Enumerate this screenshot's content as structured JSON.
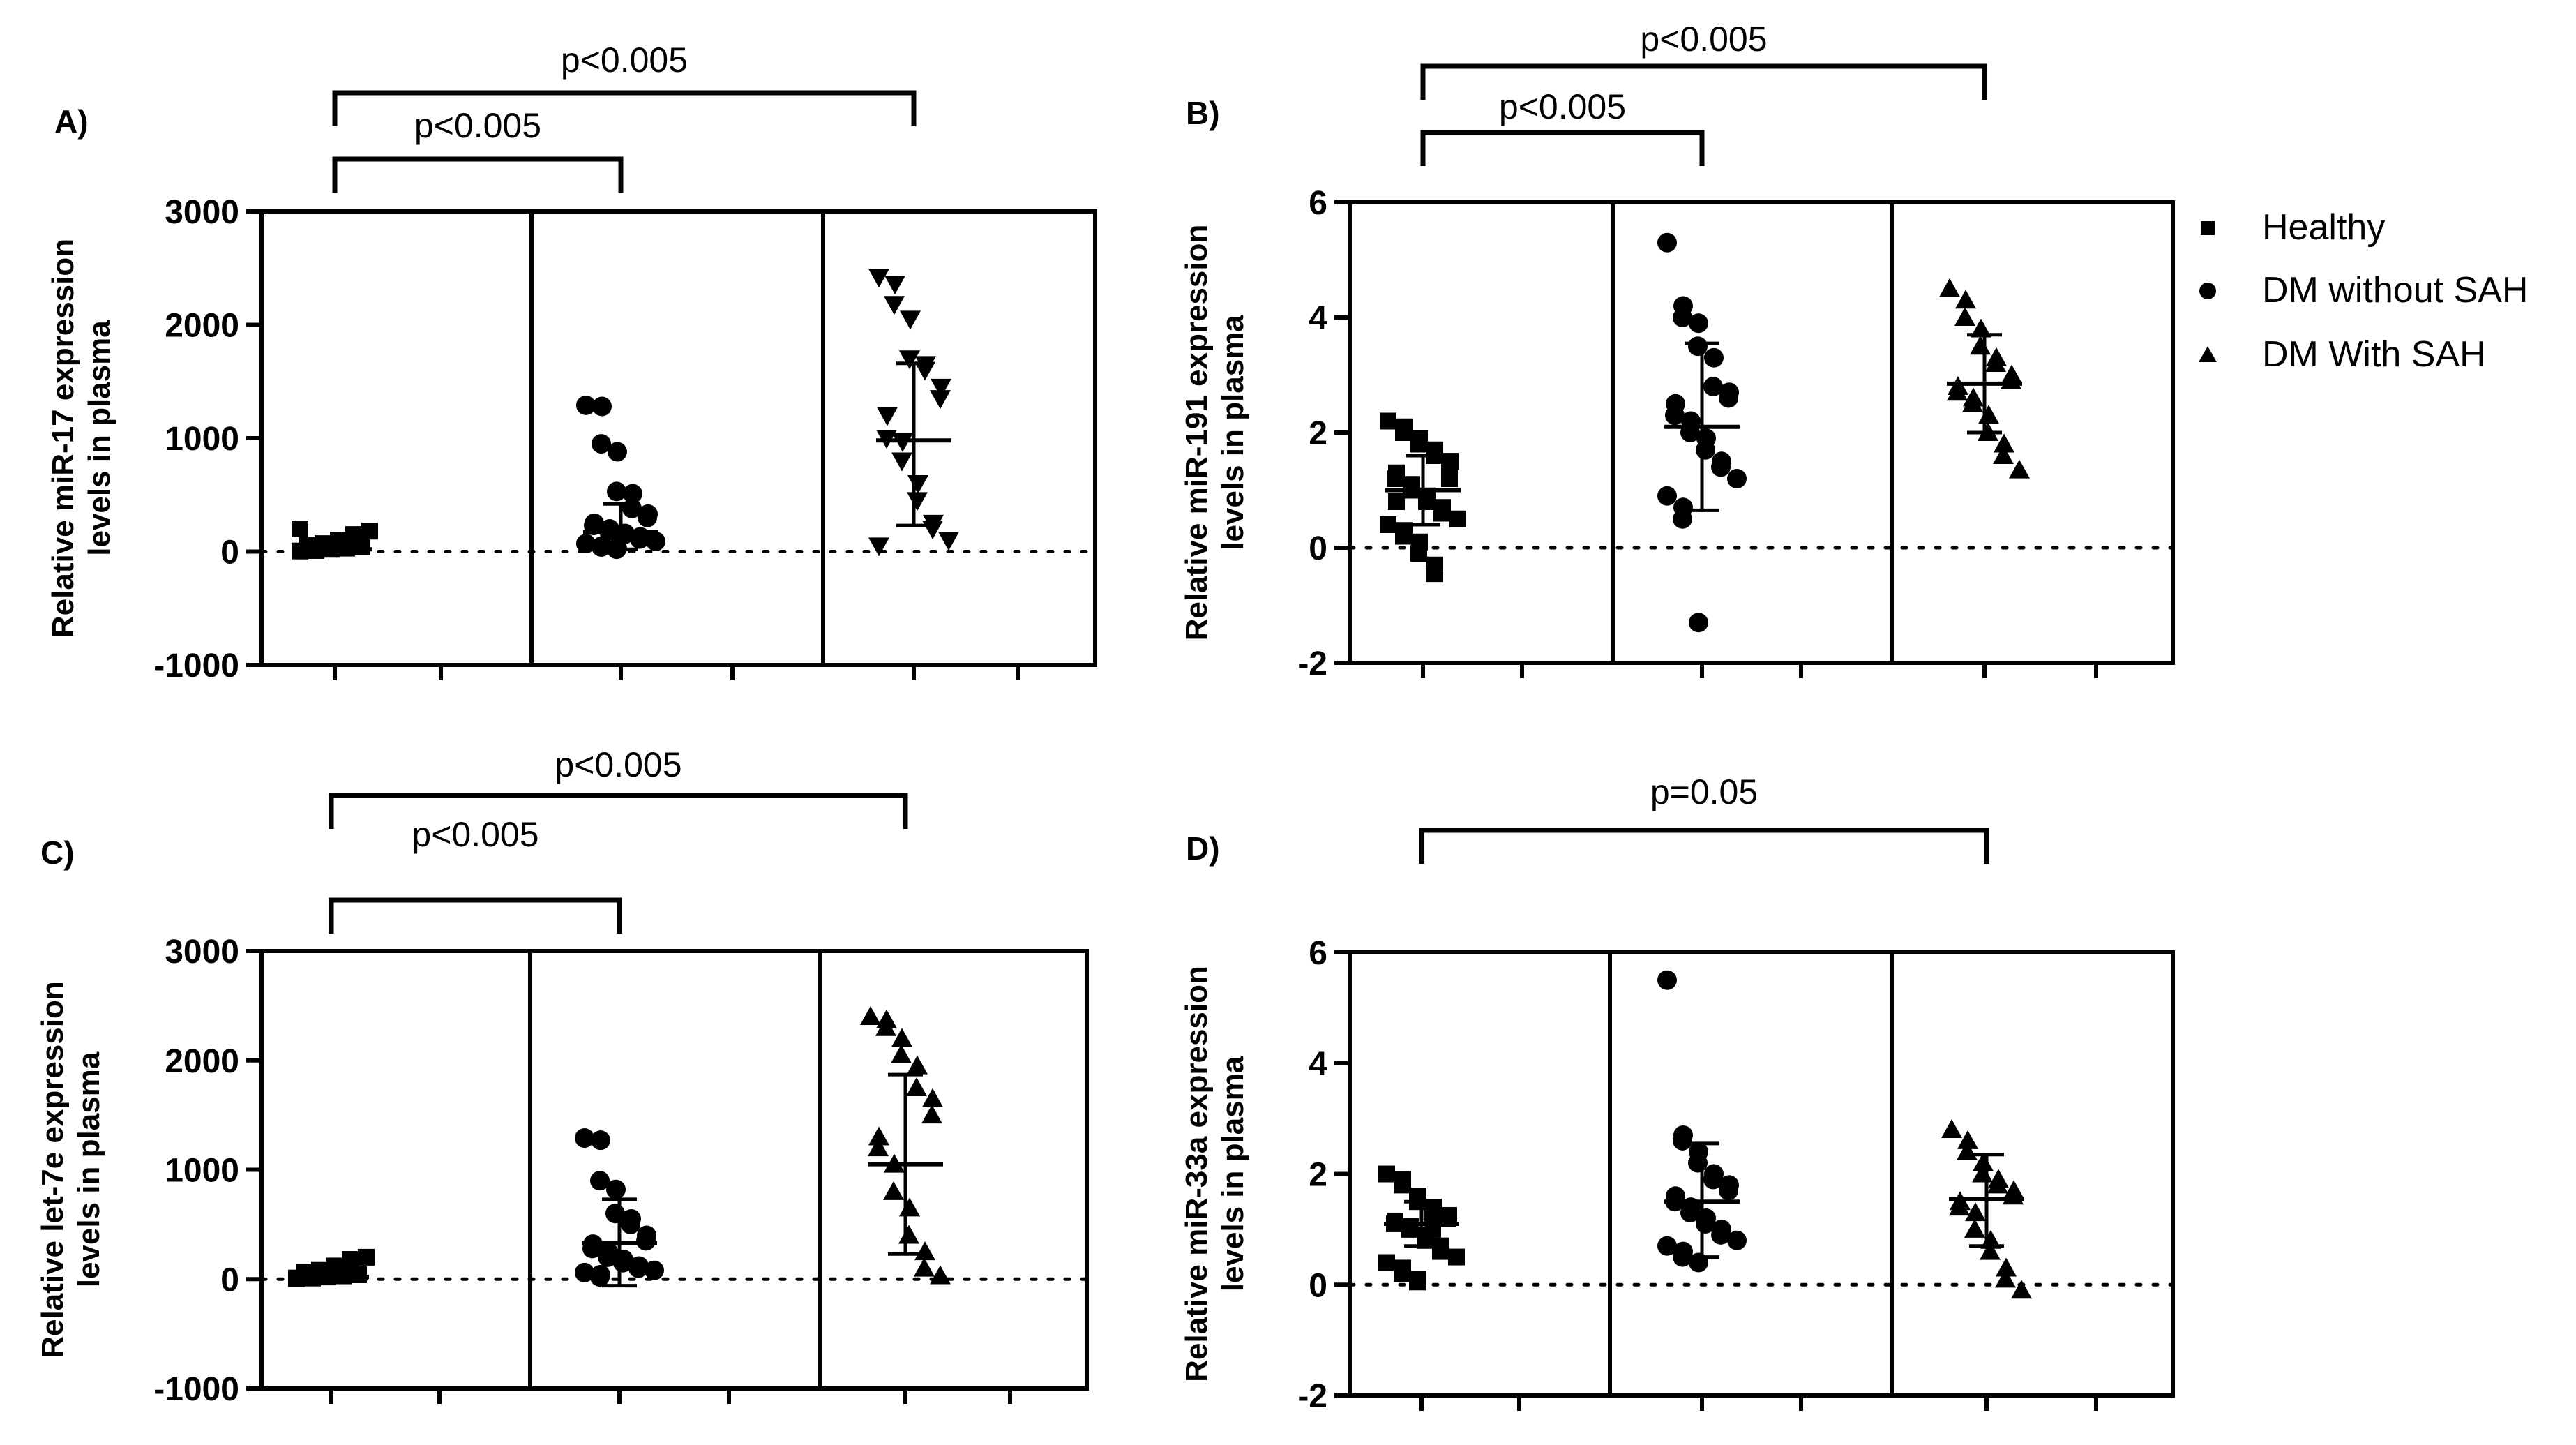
{
  "legend": [
    {
      "label": "Healthy",
      "marker": "square"
    },
    {
      "label": "DM without SAH",
      "marker": "circle"
    },
    {
      "label": "DM With SAH",
      "marker": "triangle"
    }
  ],
  "chart_data": [
    {
      "type": "scatter",
      "panel": "A)",
      "ylabel_line1": "Relative miR-17 expression",
      "ylabel_line2": "levels in plasma",
      "ylim": [
        -1000,
        3000
      ],
      "yticks": [
        -1000,
        0,
        1000,
        2000,
        3000
      ],
      "yticklabels": [
        "-1000",
        "0",
        "1000",
        "2000",
        "3000"
      ],
      "groups": [
        {
          "name": "Healthy",
          "marker": "square",
          "mean": 20,
          "sd_low": -20,
          "sd_high": 60,
          "values": [
            5,
            10,
            15,
            20,
            25,
            30,
            35,
            40,
            45,
            50,
            55,
            60,
            70,
            80,
            100,
            120,
            150,
            180,
            200,
            10,
            20,
            30,
            40,
            50
          ]
        },
        {
          "name": "DM without SAH",
          "marker": "circle",
          "mean": 170,
          "sd_low": 20,
          "sd_high": 420,
          "values": [
            1290,
            1280,
            950,
            880,
            530,
            510,
            380,
            330,
            300,
            250,
            230,
            200,
            180,
            160,
            150,
            130,
            110,
            90,
            70,
            50,
            40,
            30,
            20
          ]
        },
        {
          "name": "DM With SAH",
          "marker": "triangle-down",
          "mean": 980,
          "sd_low": 230,
          "sd_high": 1660,
          "values": [
            2420,
            2360,
            2180,
            2050,
            1700,
            1650,
            1600,
            1450,
            1350,
            1200,
            1000,
            970,
            800,
            600,
            450,
            250,
            200,
            100,
            50
          ]
        }
      ],
      "comparisons": [
        {
          "label": "p<0.005",
          "from": "Healthy",
          "to": "DM without SAH"
        },
        {
          "label": "p<0.005",
          "from": "Healthy",
          "to": "DM With SAH"
        }
      ]
    },
    {
      "type": "scatter",
      "panel": "B)",
      "ylabel_line1": "Relative miR-191 expression",
      "ylabel_line2": "levels in plasma",
      "ylim": [
        -2,
        6
      ],
      "yticks": [
        -2,
        0,
        2,
        4,
        6
      ],
      "yticklabels": [
        "-2",
        "0",
        "2",
        "4",
        "6"
      ],
      "groups": [
        {
          "name": "Healthy",
          "marker": "square",
          "mean": 1.0,
          "sd_low": 0.4,
          "sd_high": 1.6,
          "values": [
            2.2,
            2.1,
            2.0,
            1.9,
            1.8,
            1.7,
            1.6,
            1.5,
            1.4,
            1.3,
            1.2,
            1.1,
            1.0,
            0.9,
            0.8,
            0.7,
            0.6,
            0.5,
            0.4,
            0.3,
            0.2,
            0.1,
            -0.1,
            -0.3,
            -0.45,
            1.5,
            1.2,
            0.8
          ]
        },
        {
          "name": "DM without SAH",
          "marker": "circle",
          "mean": 2.1,
          "sd_low": 0.65,
          "sd_high": 3.55,
          "values": [
            5.3,
            4.2,
            4.0,
            3.9,
            3.5,
            3.3,
            2.8,
            2.7,
            2.6,
            2.5,
            2.3,
            2.2,
            2.0,
            1.9,
            1.7,
            1.5,
            1.4,
            1.2,
            0.9,
            0.7,
            0.5,
            -1.3
          ]
        },
        {
          "name": "DM With SAH",
          "marker": "triangle",
          "mean": 2.85,
          "sd_low": 2.0,
          "sd_high": 3.7,
          "values": [
            4.5,
            4.3,
            4.0,
            3.8,
            3.5,
            3.3,
            3.2,
            3.0,
            2.9,
            2.8,
            2.7,
            2.6,
            2.5,
            2.3,
            2.0,
            1.8,
            1.6,
            1.35
          ]
        }
      ],
      "comparisons": [
        {
          "label": "p<0.005",
          "from": "Healthy",
          "to": "DM without SAH"
        },
        {
          "label": "p<0.005",
          "from": "Healthy",
          "to": "DM With SAH"
        }
      ]
    },
    {
      "type": "scatter",
      "panel": "C)",
      "ylabel_line1": "Relative let-7e  expression",
      "ylabel_line2": "levels in plasma",
      "ylim": [
        -1000,
        3000
      ],
      "yticks": [
        -1000,
        0,
        1000,
        2000,
        3000
      ],
      "yticklabels": [
        "-1000",
        "0",
        "1000",
        "2000",
        "3000"
      ],
      "groups": [
        {
          "name": "Healthy",
          "marker": "square",
          "mean": 20,
          "sd_low": -20,
          "sd_high": 60,
          "values": [
            5,
            10,
            15,
            20,
            25,
            30,
            35,
            40,
            45,
            50,
            60,
            70,
            80,
            100,
            120,
            150,
            180,
            200,
            10,
            30,
            50
          ]
        },
        {
          "name": "DM without SAH",
          "marker": "circle",
          "mean": 330,
          "sd_low": -60,
          "sd_high": 730,
          "values": [
            1290,
            1270,
            900,
            820,
            600,
            550,
            500,
            400,
            350,
            320,
            280,
            250,
            200,
            180,
            150,
            120,
            100,
            80,
            60,
            40,
            20
          ]
        },
        {
          "name": "DM With SAH",
          "marker": "triangle",
          "mean": 1050,
          "sd_low": 230,
          "sd_high": 1870,
          "values": [
            2400,
            2370,
            2300,
            2200,
            2050,
            1950,
            1750,
            1650,
            1500,
            1300,
            1200,
            1050,
            800,
            650,
            400,
            250,
            100,
            30
          ]
        }
      ],
      "comparisons": [
        {
          "label": "p<0.005",
          "from": "Healthy",
          "to": "DM without SAH"
        },
        {
          "label": "p<0.005",
          "from": "Healthy",
          "to": "DM With SAH"
        }
      ]
    },
    {
      "type": "scatter",
      "panel": "D)",
      "ylabel_line1": "Relative miR-33a  expression",
      "ylabel_line2": "levels in plasma",
      "ylim": [
        -2,
        6
      ],
      "yticks": [
        -2,
        0,
        2,
        4,
        6
      ],
      "yticklabels": [
        "-2",
        "0",
        "2",
        "4",
        "6"
      ],
      "groups": [
        {
          "name": "Healthy",
          "marker": "square",
          "mean": 1.1,
          "sd_low": 0.7,
          "sd_high": 1.5,
          "values": [
            2.0,
            1.9,
            1.8,
            1.6,
            1.5,
            1.4,
            1.3,
            1.25,
            1.2,
            1.15,
            1.1,
            1.05,
            1.0,
            0.9,
            0.8,
            0.7,
            0.6,
            0.5,
            0.4,
            0.3,
            0.2,
            0.1,
            0.05,
            1.2,
            1.0
          ]
        },
        {
          "name": "DM without SAH",
          "marker": "circle",
          "mean": 1.5,
          "sd_low": 0.5,
          "sd_high": 2.55,
          "values": [
            5.5,
            2.7,
            2.6,
            2.4,
            2.2,
            2.0,
            1.9,
            1.8,
            1.7,
            1.6,
            1.5,
            1.4,
            1.3,
            1.2,
            1.1,
            1.0,
            0.9,
            0.8,
            0.7,
            0.6,
            0.5,
            0.4
          ]
        },
        {
          "name": "DM With SAH",
          "marker": "triangle",
          "mean": 1.55,
          "sd_low": 0.7,
          "sd_high": 2.35,
          "values": [
            2.8,
            2.6,
            2.4,
            2.2,
            2.0,
            1.9,
            1.8,
            1.7,
            1.6,
            1.5,
            1.4,
            1.3,
            1.0,
            0.8,
            0.6,
            0.3,
            0.1,
            -0.1
          ]
        }
      ],
      "comparisons": [
        {
          "label": "p=0.05",
          "from": "Healthy",
          "to": "DM With SAH"
        }
      ]
    }
  ]
}
